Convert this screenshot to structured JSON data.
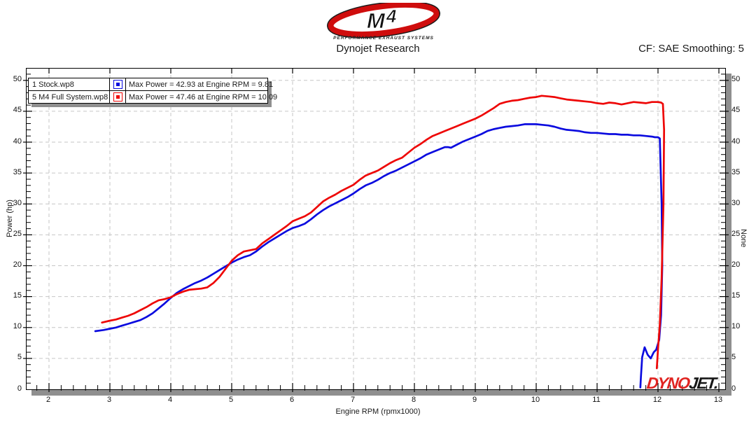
{
  "header": {
    "logo_text": "M4",
    "logo_sub": "PERFORMANCE EXHAUST SYSTEMS",
    "title": "Dynojet Research",
    "correction": "CF: SAE Smoothing: 5"
  },
  "legend": {
    "rows": [
      {
        "file": "1 Stock.wp8",
        "note": "Max Power = 42.93 at Engine RPM = 9.81",
        "color": "#0b0bdf"
      },
      {
        "file": "5 M4 Full System.wp8",
        "note": "Max Power = 47.46 at Engine RPM = 10.09",
        "color": "#ee0606"
      }
    ]
  },
  "watermark": {
    "part1": "DYNO",
    "part2": "JET."
  },
  "colors": {
    "grid": "#c6c6c6",
    "axis": "#000000",
    "shadow": "#8f8f8f",
    "stock_line": "#0b0bdf",
    "m4_line": "#ee0606"
  },
  "chart_data": {
    "type": "line",
    "title": "Dynojet Research",
    "xlabel": "Engine RPM (rpmx1000)",
    "ylabel_left": "Power (hp)",
    "ylabel_right": "None",
    "xlim": [
      2,
      13
    ],
    "ylim": [
      0,
      51.9
    ],
    "x_major_ticks": [
      2,
      3,
      4,
      5,
      6,
      7,
      8,
      9,
      10,
      11,
      12,
      13
    ],
    "x_minor_step": 0.2,
    "y_major_ticks": [
      0,
      5,
      10,
      15,
      20,
      25,
      30,
      35,
      40,
      45,
      50
    ],
    "y_minor_step": 1,
    "grid": "dashed",
    "legend_position": "top-left",
    "series": [
      {
        "name": "1 Stock.wp8",
        "color": "#0b0bdf",
        "max_power": 42.93,
        "max_power_rpm": 9.81,
        "points": [
          [
            2.76,
            9.4
          ],
          [
            2.9,
            9.6
          ],
          [
            3.0,
            9.8
          ],
          [
            3.1,
            10.0
          ],
          [
            3.2,
            10.3
          ],
          [
            3.3,
            10.6
          ],
          [
            3.4,
            10.9
          ],
          [
            3.5,
            11.2
          ],
          [
            3.6,
            11.7
          ],
          [
            3.7,
            12.3
          ],
          [
            3.8,
            13.1
          ],
          [
            3.9,
            13.9
          ],
          [
            4.0,
            14.8
          ],
          [
            4.1,
            15.6
          ],
          [
            4.2,
            16.2
          ],
          [
            4.3,
            16.7
          ],
          [
            4.4,
            17.2
          ],
          [
            4.5,
            17.6
          ],
          [
            4.6,
            18.1
          ],
          [
            4.7,
            18.7
          ],
          [
            4.8,
            19.3
          ],
          [
            4.9,
            19.9
          ],
          [
            5.0,
            20.5
          ],
          [
            5.1,
            21.0
          ],
          [
            5.2,
            21.4
          ],
          [
            5.3,
            21.7
          ],
          [
            5.4,
            22.3
          ],
          [
            5.5,
            23.1
          ],
          [
            5.6,
            23.8
          ],
          [
            5.7,
            24.4
          ],
          [
            5.8,
            25.0
          ],
          [
            5.9,
            25.6
          ],
          [
            6.0,
            26.1
          ],
          [
            6.1,
            26.4
          ],
          [
            6.2,
            26.8
          ],
          [
            6.3,
            27.5
          ],
          [
            6.4,
            28.3
          ],
          [
            6.5,
            29.0
          ],
          [
            6.6,
            29.6
          ],
          [
            6.7,
            30.1
          ],
          [
            6.8,
            30.6
          ],
          [
            6.9,
            31.1
          ],
          [
            7.0,
            31.7
          ],
          [
            7.1,
            32.4
          ],
          [
            7.2,
            33.0
          ],
          [
            7.3,
            33.4
          ],
          [
            7.4,
            33.9
          ],
          [
            7.5,
            34.5
          ],
          [
            7.6,
            35.0
          ],
          [
            7.7,
            35.4
          ],
          [
            7.8,
            35.9
          ],
          [
            7.9,
            36.4
          ],
          [
            8.0,
            36.9
          ],
          [
            8.1,
            37.4
          ],
          [
            8.2,
            38.0
          ],
          [
            8.3,
            38.4
          ],
          [
            8.4,
            38.8
          ],
          [
            8.5,
            39.2
          ],
          [
            8.55,
            39.2
          ],
          [
            8.6,
            39.1
          ],
          [
            8.7,
            39.6
          ],
          [
            8.8,
            40.1
          ],
          [
            8.9,
            40.5
          ],
          [
            9.0,
            40.9
          ],
          [
            9.1,
            41.3
          ],
          [
            9.2,
            41.8
          ],
          [
            9.3,
            42.1
          ],
          [
            9.4,
            42.3
          ],
          [
            9.5,
            42.5
          ],
          [
            9.6,
            42.6
          ],
          [
            9.7,
            42.7
          ],
          [
            9.81,
            42.9
          ],
          [
            9.9,
            42.9
          ],
          [
            10.0,
            42.9
          ],
          [
            10.1,
            42.8
          ],
          [
            10.2,
            42.7
          ],
          [
            10.3,
            42.5
          ],
          [
            10.4,
            42.2
          ],
          [
            10.5,
            42.0
          ],
          [
            10.6,
            41.9
          ],
          [
            10.7,
            41.8
          ],
          [
            10.8,
            41.6
          ],
          [
            10.9,
            41.5
          ],
          [
            11.0,
            41.5
          ],
          [
            11.1,
            41.4
          ],
          [
            11.2,
            41.3
          ],
          [
            11.3,
            41.3
          ],
          [
            11.4,
            41.2
          ],
          [
            11.5,
            41.2
          ],
          [
            11.6,
            41.1
          ],
          [
            11.7,
            41.1
          ],
          [
            11.8,
            41.0
          ],
          [
            11.9,
            40.9
          ],
          [
            11.95,
            40.8
          ],
          [
            12.0,
            40.8
          ],
          [
            12.03,
            40.6
          ],
          [
            12.06,
            30.0
          ],
          [
            12.07,
            20.0
          ],
          [
            12.05,
            12.0
          ],
          [
            12.02,
            8.0
          ],
          [
            11.97,
            6.4
          ],
          [
            11.93,
            6.0
          ],
          [
            11.88,
            5.0
          ],
          [
            11.83,
            5.6
          ],
          [
            11.78,
            6.8
          ],
          [
            11.74,
            5.2
          ],
          [
            11.72,
            2.0
          ],
          [
            11.71,
            0.3
          ]
        ]
      },
      {
        "name": "5 M4 Full System.wp8",
        "color": "#ee0606",
        "max_power": 47.46,
        "max_power_rpm": 10.09,
        "points": [
          [
            2.87,
            10.8
          ],
          [
            3.0,
            11.1
          ],
          [
            3.1,
            11.3
          ],
          [
            3.2,
            11.6
          ],
          [
            3.3,
            11.9
          ],
          [
            3.4,
            12.3
          ],
          [
            3.5,
            12.8
          ],
          [
            3.6,
            13.3
          ],
          [
            3.7,
            13.9
          ],
          [
            3.8,
            14.4
          ],
          [
            3.9,
            14.6
          ],
          [
            4.0,
            14.9
          ],
          [
            4.1,
            15.4
          ],
          [
            4.2,
            15.8
          ],
          [
            4.3,
            16.1
          ],
          [
            4.4,
            16.2
          ],
          [
            4.5,
            16.3
          ],
          [
            4.6,
            16.5
          ],
          [
            4.7,
            17.2
          ],
          [
            4.8,
            18.2
          ],
          [
            4.9,
            19.5
          ],
          [
            5.0,
            20.8
          ],
          [
            5.1,
            21.7
          ],
          [
            5.2,
            22.3
          ],
          [
            5.3,
            22.5
          ],
          [
            5.4,
            22.7
          ],
          [
            5.5,
            23.6
          ],
          [
            5.6,
            24.3
          ],
          [
            5.7,
            25.0
          ],
          [
            5.8,
            25.7
          ],
          [
            5.9,
            26.4
          ],
          [
            6.0,
            27.2
          ],
          [
            6.1,
            27.6
          ],
          [
            6.2,
            28.0
          ],
          [
            6.3,
            28.6
          ],
          [
            6.4,
            29.5
          ],
          [
            6.5,
            30.4
          ],
          [
            6.6,
            31.0
          ],
          [
            6.7,
            31.5
          ],
          [
            6.8,
            32.1
          ],
          [
            6.9,
            32.6
          ],
          [
            7.0,
            33.1
          ],
          [
            7.1,
            33.9
          ],
          [
            7.2,
            34.6
          ],
          [
            7.3,
            35.0
          ],
          [
            7.4,
            35.4
          ],
          [
            7.5,
            36.0
          ],
          [
            7.6,
            36.6
          ],
          [
            7.7,
            37.1
          ],
          [
            7.8,
            37.5
          ],
          [
            7.9,
            38.3
          ],
          [
            8.0,
            39.1
          ],
          [
            8.1,
            39.7
          ],
          [
            8.2,
            40.4
          ],
          [
            8.3,
            41.0
          ],
          [
            8.4,
            41.4
          ],
          [
            8.5,
            41.8
          ],
          [
            8.6,
            42.2
          ],
          [
            8.7,
            42.6
          ],
          [
            8.8,
            43.0
          ],
          [
            8.9,
            43.4
          ],
          [
            9.0,
            43.8
          ],
          [
            9.1,
            44.3
          ],
          [
            9.2,
            44.9
          ],
          [
            9.3,
            45.5
          ],
          [
            9.4,
            46.2
          ],
          [
            9.5,
            46.5
          ],
          [
            9.6,
            46.7
          ],
          [
            9.7,
            46.8
          ],
          [
            9.8,
            47.0
          ],
          [
            9.9,
            47.2
          ],
          [
            10.0,
            47.3
          ],
          [
            10.09,
            47.5
          ],
          [
            10.2,
            47.4
          ],
          [
            10.3,
            47.3
          ],
          [
            10.4,
            47.1
          ],
          [
            10.5,
            46.9
          ],
          [
            10.6,
            46.8
          ],
          [
            10.7,
            46.7
          ],
          [
            10.8,
            46.6
          ],
          [
            10.9,
            46.5
          ],
          [
            11.0,
            46.3
          ],
          [
            11.1,
            46.2
          ],
          [
            11.2,
            46.4
          ],
          [
            11.3,
            46.3
          ],
          [
            11.4,
            46.1
          ],
          [
            11.5,
            46.3
          ],
          [
            11.6,
            46.5
          ],
          [
            11.7,
            46.4
          ],
          [
            11.8,
            46.3
          ],
          [
            11.9,
            46.5
          ],
          [
            12.0,
            46.5
          ],
          [
            12.05,
            46.4
          ],
          [
            12.08,
            46.2
          ],
          [
            12.1,
            42.0
          ],
          [
            12.09,
            30.0
          ],
          [
            12.06,
            18.0
          ],
          [
            12.03,
            10.5
          ],
          [
            12.0,
            6.5
          ],
          [
            11.98,
            3.4
          ]
        ]
      }
    ]
  }
}
